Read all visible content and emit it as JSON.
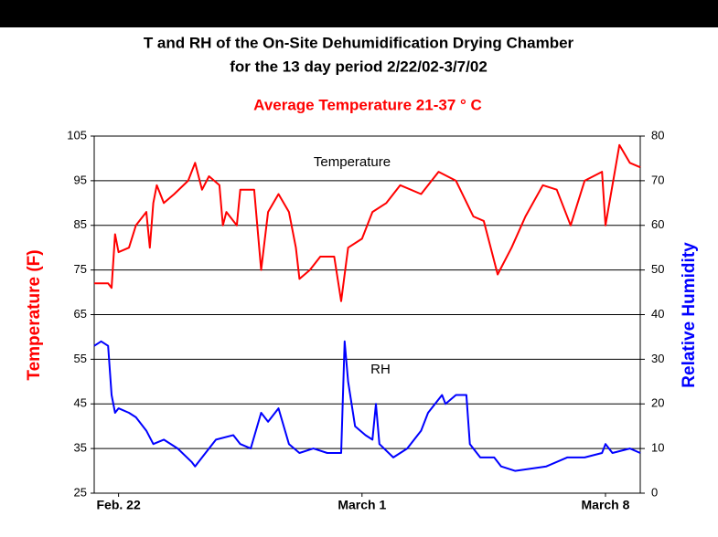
{
  "chart_data": {
    "type": "line",
    "title": [
      "T and RH of the On-Site Dehumidification Drying Chamber",
      "for the 13 day period 2/22/02-3/7/02"
    ],
    "subtitle": "Average Temperature 21-37 ° C",
    "ylabel": "Temperature (F)",
    "y2label": "Relative Humidity",
    "xlim": [
      -0.7,
      15
    ],
    "xticks": [
      {
        "value": 0,
        "label": "Feb. 22"
      },
      {
        "value": 7,
        "label": "March 1"
      },
      {
        "value": 14,
        "label": "March 8"
      }
    ],
    "ylim": [
      25,
      105
    ],
    "yticks": [
      25,
      35,
      45,
      55,
      65,
      75,
      85,
      95,
      105
    ],
    "y2lim": [
      0,
      80
    ],
    "y2ticks": [
      0,
      10,
      20,
      30,
      40,
      50,
      60,
      70,
      80
    ],
    "grid": true,
    "series": [
      {
        "name": "Temperature",
        "color": "#ff0000",
        "x": [
          -0.7,
          -0.3,
          -0.2,
          -0.1,
          0,
          0.3,
          0.5,
          0.8,
          0.9,
          1.0,
          1.1,
          1.3,
          1.6,
          2.0,
          2.2,
          2.4,
          2.6,
          2.9,
          3.0,
          3.1,
          3.4,
          3.5,
          3.9,
          4.1,
          4.3,
          4.6,
          4.9,
          5.1,
          5.2,
          5.5,
          5.8,
          6.2,
          6.4,
          6.6,
          7.0,
          7.3,
          7.7,
          8.1,
          8.7,
          9.2,
          9.7,
          10.2,
          10.5,
          10.9,
          11.3,
          11.7,
          12.2,
          12.6,
          13.0,
          13.4,
          13.9,
          14.0,
          14.4,
          14.7,
          15.0
        ],
        "values": [
          72,
          72,
          71,
          83,
          79,
          80,
          85,
          88,
          80,
          90,
          94,
          90,
          92,
          95,
          99,
          93,
          96,
          94,
          85,
          88,
          85,
          93,
          93,
          75,
          88,
          92,
          88,
          80,
          73,
          75,
          78,
          78,
          68,
          80,
          82,
          88,
          90,
          94,
          92,
          97,
          95,
          87,
          86,
          74,
          80,
          87,
          94,
          93,
          85,
          95,
          97,
          85,
          103,
          99,
          98
        ]
      },
      {
        "name": "RH",
        "color": "#0000ff",
        "axis": "y2",
        "x": [
          -0.7,
          -0.5,
          -0.3,
          -0.2,
          -0.1,
          0,
          0.3,
          0.5,
          0.8,
          1.0,
          1.3,
          1.7,
          2.1,
          2.2,
          2.5,
          2.8,
          3.3,
          3.5,
          3.8,
          4.1,
          4.3,
          4.6,
          4.9,
          5.2,
          5.6,
          6.0,
          6.4,
          6.5,
          6.6,
          6.8,
          7.1,
          7.3,
          7.4,
          7.5,
          7.9,
          8.3,
          8.7,
          8.9,
          9.3,
          9.4,
          9.7,
          10.0,
          10.1,
          10.4,
          10.8,
          11.0,
          11.4,
          12.3,
          12.9,
          13.4,
          13.9,
          14.0,
          14.2,
          14.7,
          15.0
        ],
        "values": [
          33,
          34,
          33,
          22,
          18,
          19,
          18,
          17,
          14,
          11,
          12,
          10,
          7,
          6,
          9,
          12,
          13,
          11,
          10,
          18,
          16,
          19,
          11,
          9,
          10,
          9,
          9,
          34,
          25,
          15,
          13,
          12,
          20,
          11,
          8,
          10,
          14,
          18,
          22,
          20,
          22,
          22,
          11,
          8,
          8,
          6,
          5,
          6,
          8,
          8,
          9,
          11,
          9,
          10,
          9
        ]
      }
    ]
  }
}
